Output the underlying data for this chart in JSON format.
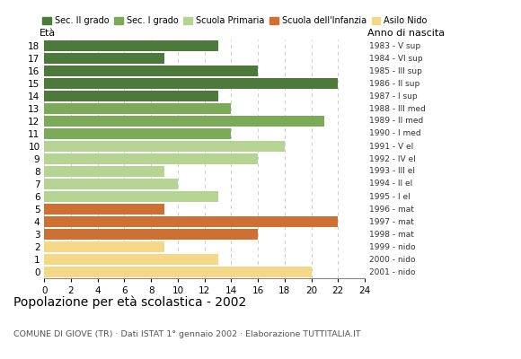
{
  "ages": [
    18,
    17,
    16,
    15,
    14,
    13,
    12,
    11,
    10,
    9,
    8,
    7,
    6,
    5,
    4,
    3,
    2,
    1,
    0
  ],
  "values": [
    13,
    9,
    16,
    22,
    13,
    14,
    21,
    14,
    18,
    16,
    9,
    10,
    13,
    9,
    22,
    16,
    9,
    13,
    20
  ],
  "right_labels": [
    "1983 - V sup",
    "1984 - VI sup",
    "1985 - III sup",
    "1986 - II sup",
    "1987 - I sup",
    "1988 - III med",
    "1989 - II med",
    "1990 - I med",
    "1991 - V el",
    "1992 - IV el",
    "1993 - III el",
    "1994 - II el",
    "1995 - I el",
    "1996 - mat",
    "1997 - mat",
    "1998 - mat",
    "1999 - nido",
    "2000 - nido",
    "2001 - nido"
  ],
  "categories": {
    "Sec. II grado": {
      "ages": [
        14,
        15,
        16,
        17,
        18
      ],
      "color": "#4d7a3a"
    },
    "Sec. I grado": {
      "ages": [
        11,
        12,
        13
      ],
      "color": "#7caa5a"
    },
    "Scuola Primaria": {
      "ages": [
        6,
        7,
        8,
        9,
        10
      ],
      "color": "#b5d494"
    },
    "Scuola dell'Infanzia": {
      "ages": [
        3,
        4,
        5
      ],
      "color": "#cc7033"
    },
    "Asilo Nido": {
      "ages": [
        0,
        1,
        2
      ],
      "color": "#f5d78a"
    }
  },
  "title": "Popolazione per età scolastica - 2002",
  "subtitle": "COMUNE DI GIOVE (TR) · Dati ISTAT 1° gennaio 2002 · Elaborazione TUTTITALIA.IT",
  "label_eta": "Età",
  "label_anno": "Anno di nascita",
  "xlim": [
    0,
    24
  ],
  "xticks": [
    0,
    2,
    4,
    6,
    8,
    10,
    12,
    14,
    16,
    18,
    20,
    22,
    24
  ],
  "bar_height": 0.82,
  "bg_color": "#ffffff",
  "grid_color": "#cccccc",
  "legend_labels": [
    "Sec. II grado",
    "Sec. I grado",
    "Scuola Primaria",
    "Scuola dell'Infanzia",
    "Asilo Nido"
  ],
  "legend_colors": [
    "#4d7a3a",
    "#7caa5a",
    "#b5d494",
    "#cc7033",
    "#f5d78a"
  ]
}
